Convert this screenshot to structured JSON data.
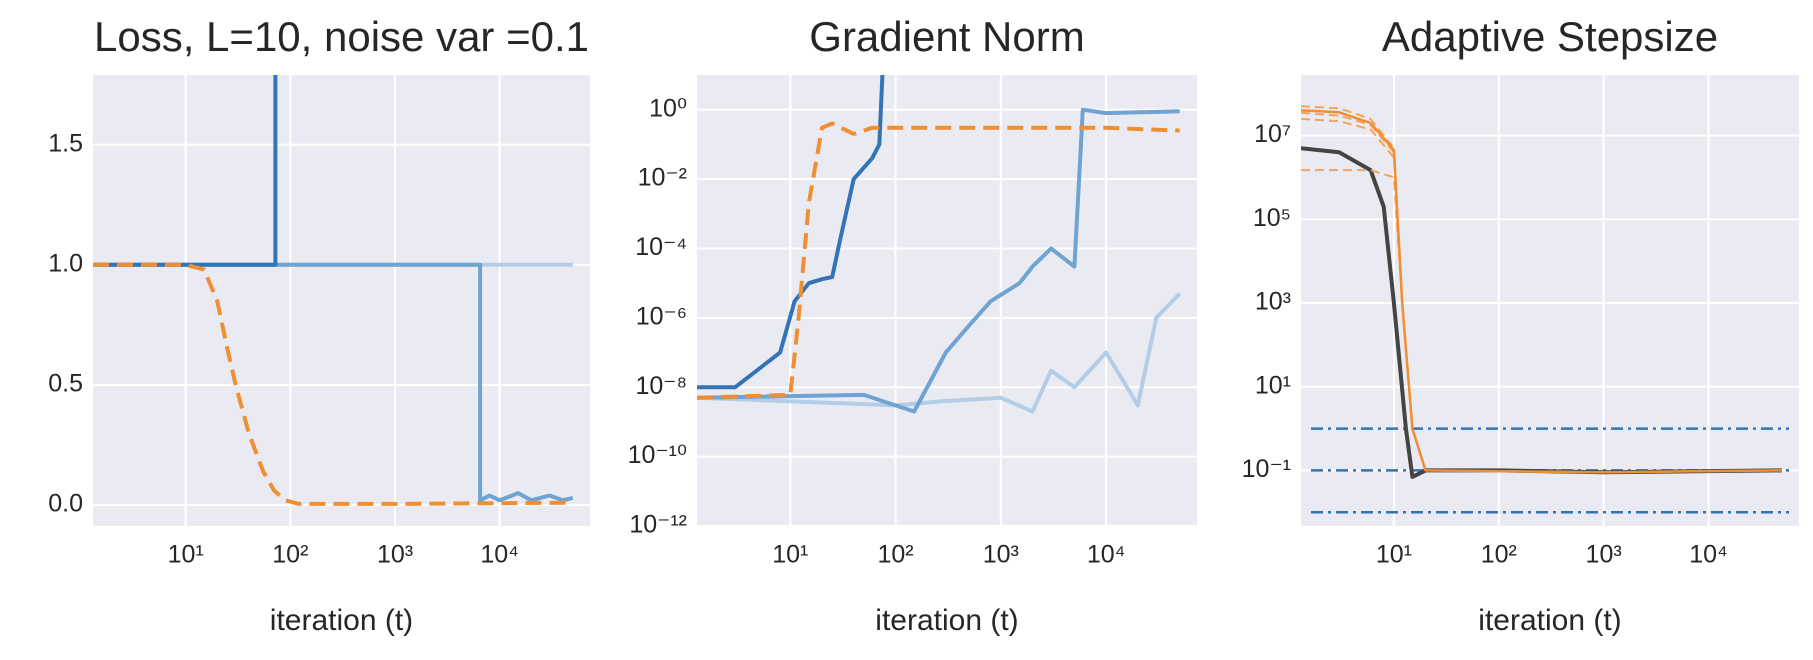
{
  "chart_data": [
    {
      "type": "line",
      "title": "Loss, L=10, noise var =0.1",
      "xlabel": "iteration (t)",
      "xscale": "log",
      "yscale": "linear",
      "grid": true,
      "xlim": [
        1.3,
        73000
      ],
      "ylim": [
        -0.087,
        1.79
      ],
      "xticks": [
        {
          "value": 10,
          "label": "10¹"
        },
        {
          "value": 100,
          "label": "10²"
        },
        {
          "value": 1000,
          "label": "10³"
        },
        {
          "value": 10000,
          "label": "10⁴"
        }
      ],
      "yticks": [
        {
          "value": 0,
          "label": "0.0"
        },
        0.5,
        {
          "value": 1,
          "label": "1.0"
        },
        1.5
      ],
      "series": [
        {
          "color": "#b3cde6",
          "style": "solid",
          "x": [
            1.3,
            50000
          ],
          "values": [
            1.0,
            1.0
          ]
        },
        {
          "color": "#6fa3d2",
          "style": "solid",
          "x": [
            1.3,
            1000,
            6500,
            6500,
            8000,
            10000,
            15000,
            20000,
            30000,
            40000,
            50000
          ],
          "values": [
            1.0,
            1.0,
            1.0,
            0.02,
            0.04,
            0.02,
            0.05,
            0.02,
            0.04,
            0.02,
            0.03
          ]
        },
        {
          "color": "#3274b5",
          "style": "solid",
          "x": [
            1.3,
            72,
            72
          ],
          "values": [
            1.0,
            1.0,
            1.79
          ]
        },
        {
          "color": "#f08e33",
          "style": "dashed",
          "x": [
            1.3,
            10,
            15,
            20,
            25,
            30,
            40,
            55,
            70,
            90,
            120,
            300,
            1000,
            10000,
            50000
          ],
          "values": [
            1.0,
            1.0,
            0.98,
            0.85,
            0.65,
            0.5,
            0.3,
            0.14,
            0.06,
            0.02,
            0.005,
            0.005,
            0.005,
            0.008,
            0.01
          ]
        }
      ]
    },
    {
      "type": "line",
      "title": "Gradient Norm",
      "xlabel": "iteration (t)",
      "xscale": "log",
      "yscale": "log",
      "grid": true,
      "xlim": [
        1.3,
        73000
      ],
      "ylim": [
        1e-12,
        10
      ],
      "xticks": [
        {
          "value": 10,
          "label": "10¹"
        },
        {
          "value": 100,
          "label": "10²"
        },
        {
          "value": 1000,
          "label": "10³"
        },
        {
          "value": 10000,
          "label": "10⁴"
        }
      ],
      "yticks": [
        {
          "value": 1e-12,
          "label": "10⁻¹²"
        },
        {
          "value": 1e-10,
          "label": "10⁻¹⁰"
        },
        {
          "value": 1e-08,
          "label": "10⁻⁸"
        },
        {
          "value": 1e-06,
          "label": "10⁻⁶"
        },
        {
          "value": 0.0001,
          "label": "10⁻⁴"
        },
        {
          "value": 0.01,
          "label": "10⁻²"
        },
        {
          "value": 1,
          "label": "10⁰"
        }
      ],
      "series": [
        {
          "color": "#b3cde6",
          "style": "solid",
          "x": [
            1.3,
            100,
            300,
            1000,
            2000,
            3000,
            5000,
            10000,
            20000,
            30000,
            50000
          ],
          "values": [
            5e-09,
            3e-09,
            4e-09,
            5e-09,
            2e-09,
            3e-08,
            1e-08,
            1e-07,
            3e-09,
            1e-06,
            5e-06
          ]
        },
        {
          "color": "#6fa3d2",
          "style": "solid",
          "x": [
            1.3,
            50,
            100,
            150,
            200,
            300,
            500,
            800,
            1500,
            2000,
            3000,
            5000,
            6000,
            10000,
            50000
          ],
          "values": [
            5e-09,
            6e-09,
            3e-09,
            2e-09,
            1e-08,
            1e-07,
            6e-07,
            3e-06,
            1e-05,
            3e-05,
            0.0001,
            3e-05,
            1,
            0.8,
            0.9
          ]
        },
        {
          "color": "#3274b5",
          "style": "solid",
          "x": [
            1.3,
            3,
            8,
            11,
            15,
            20,
            25,
            30,
            40,
            60,
            70,
            75
          ],
          "values": [
            1e-08,
            1e-08,
            1e-07,
            3e-06,
            1e-05,
            1.3e-05,
            1.5e-05,
            0.0002,
            0.01,
            0.04,
            0.1,
            10
          ]
        },
        {
          "color": "#f08e33",
          "style": "dashed",
          "x": [
            1.3,
            10,
            12,
            15,
            20,
            25,
            40,
            60,
            100,
            1000,
            10000,
            50000
          ],
          "values": [
            5e-09,
            6e-09,
            1e-06,
            0.002,
            0.3,
            0.4,
            0.2,
            0.3,
            0.3,
            0.3,
            0.3,
            0.25
          ]
        }
      ]
    },
    {
      "type": "line",
      "title": "Adaptive Stepsize",
      "xlabel": "iteration (t)",
      "xscale": "log",
      "yscale": "log",
      "grid": true,
      "xlim": [
        1.3,
        73000
      ],
      "ylim": [
        0.0047,
        280000000
      ],
      "xticks": [
        {
          "value": 10,
          "label": "10¹"
        },
        {
          "value": 100,
          "label": "10²"
        },
        {
          "value": 1000,
          "label": "10³"
        },
        {
          "value": 10000,
          "label": "10⁴"
        }
      ],
      "yticks": [
        {
          "value": 0.1,
          "label": "10⁻¹"
        },
        {
          "value": 10,
          "label": "10¹"
        },
        {
          "value": 1000,
          "label": "10³"
        },
        {
          "value": 100000,
          "label": "10⁵"
        },
        {
          "value": 10000000,
          "label": "10⁷"
        }
      ],
      "hlines": [
        1,
        0.1,
        0.01
      ],
      "hline_color": "#3274b5",
      "series": [
        {
          "color": "#444444",
          "style": "solid",
          "x": [
            1.3,
            3,
            6,
            8,
            10,
            13,
            15,
            20,
            100,
            1000,
            50000
          ],
          "values": [
            5000000,
            4000000,
            1500000,
            200000,
            1000,
            1,
            0.07,
            0.1,
            0.1,
            0.09,
            0.1
          ]
        },
        {
          "color": "#f5a25a",
          "style": "thin-dashed",
          "x": [
            1.3,
            3,
            6,
            10,
            12,
            15,
            20,
            1000,
            50000
          ],
          "values": [
            50000000,
            45000000,
            25000000,
            5000000,
            1000,
            1,
            0.1,
            0.09,
            0.1
          ]
        },
        {
          "color": "#f5a25a",
          "style": "thin-dashed",
          "x": [
            1.3,
            3,
            6,
            10,
            12,
            15,
            20,
            1000,
            50000
          ],
          "values": [
            35000000,
            30000000,
            18000000,
            4000000,
            1000,
            1,
            0.1,
            0.09,
            0.1
          ]
        },
        {
          "color": "#f5a25a",
          "style": "thin-dashed",
          "x": [
            1.3,
            3,
            6,
            10,
            12,
            15,
            20,
            1000,
            50000
          ],
          "values": [
            25000000,
            22000000,
            14000000,
            3000000,
            1000,
            1,
            0.1,
            0.09,
            0.1
          ]
        },
        {
          "color": "#f5a25a",
          "style": "thin-dashed",
          "x": [
            1.3,
            6,
            10,
            12,
            15,
            20,
            1000,
            50000
          ],
          "values": [
            1500000,
            1500000,
            1000000,
            1000,
            1,
            0.1,
            0.09,
            0.1
          ]
        },
        {
          "color": "#f08e33",
          "style": "thin",
          "x": [
            1.3,
            3,
            6,
            10,
            12,
            15,
            20,
            1000,
            50000
          ],
          "values": [
            40000000,
            36000000,
            20000000,
            4500000,
            1000,
            1,
            0.1,
            0.09,
            0.1
          ]
        }
      ]
    }
  ]
}
